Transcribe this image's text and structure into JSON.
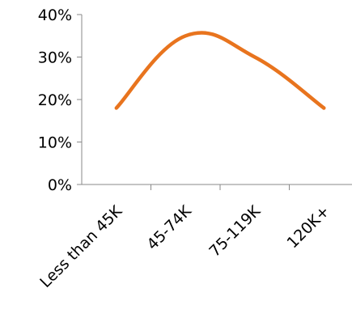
{
  "chart_data": {
    "type": "line",
    "title": "",
    "xlabel": "",
    "ylabel": "",
    "categories": [
      "Less than 45K",
      "45-74K",
      "75-119K",
      "120K+"
    ],
    "y_tick_labels": [
      "0%",
      "10%",
      "20%",
      "30%",
      "40%"
    ],
    "ylim": [
      0,
      40
    ],
    "y_unit": "%",
    "grid": false,
    "legend": "none",
    "series": [
      {
        "values": [
          18,
          35,
          30,
          18
        ],
        "color": "#E8741E"
      }
    ]
  }
}
